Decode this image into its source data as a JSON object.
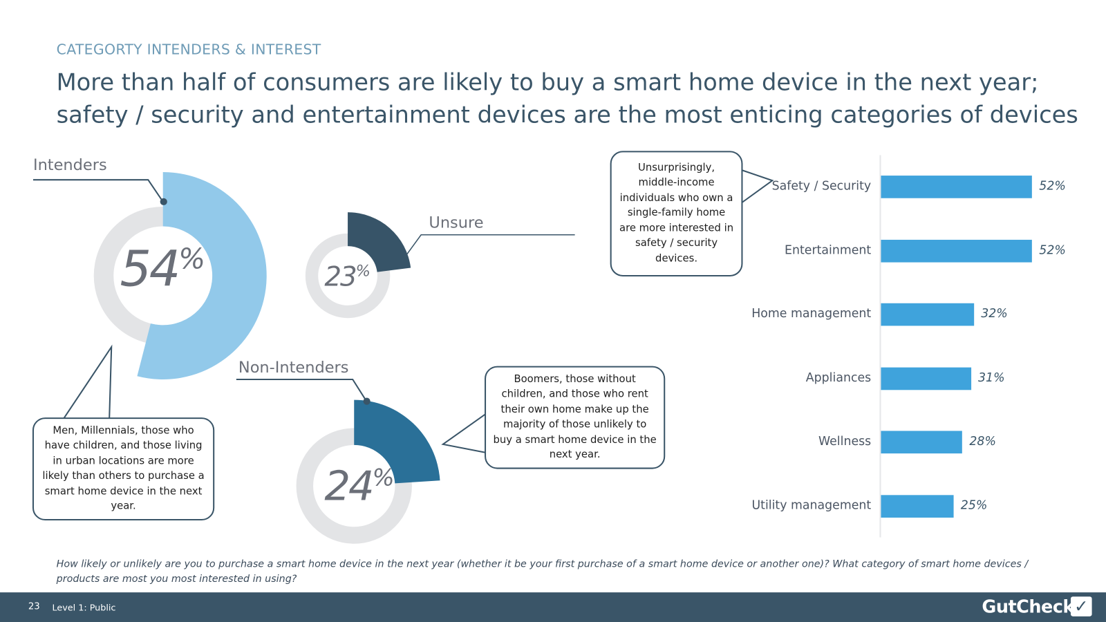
{
  "header": {
    "kicker": "CATEGORTY INTENDERS & INTEREST",
    "title_line1": "More than half of consumers are likely to buy a smart home device in the next year;",
    "title_line2": "safety / security and entertainment devices are the most enticing categories of devices"
  },
  "chart_data": [
    {
      "type": "pie",
      "subtype": "donut",
      "name": "Intenders",
      "value": 54,
      "unit": "%",
      "color": "#92c9ea",
      "track_color": "#e3e4e6"
    },
    {
      "type": "pie",
      "subtype": "donut",
      "name": "Unsure",
      "value": 23,
      "unit": "%",
      "color": "#375468",
      "track_color": "#e3e4e6"
    },
    {
      "type": "pie",
      "subtype": "donut",
      "name": "Non-Intenders",
      "value": 24,
      "unit": "%",
      "color": "#2a7098",
      "track_color": "#e3e4e6"
    },
    {
      "type": "bar",
      "orientation": "horizontal",
      "categories": [
        "Safety / Security",
        "Entertainment",
        "Home management",
        "Appliances",
        "Wellness",
        "Utility management"
      ],
      "values": [
        52,
        52,
        32,
        31,
        28,
        25
      ],
      "labels": [
        "52%",
        "52%",
        "32%",
        "31%",
        "28%",
        "25%"
      ],
      "xlim": [
        0,
        100
      ],
      "color": "#3fa3dc",
      "grid": false
    }
  ],
  "donuts": {
    "intenders_label": "Intenders",
    "intenders_value": "54",
    "unsure_label": "Unsure",
    "unsure_value": "23",
    "non_label": "Non-Intenders",
    "non_value": "24",
    "pct_sign": "%"
  },
  "callouts": {
    "intenders": "Men, Millennials, those who have children, and those living in urban locations are more likely than others to purchase a smart home device in the next year.",
    "non_intenders": "Boomers, those without children, and those who rent their own home make up the majority of those unlikely to buy a smart home device in the next year.",
    "security": "Unsurprisingly, middle-income individuals who own a single-family home are more interested in safety / security devices."
  },
  "question": "How likely or unlikely are you to purchase a smart home device in the next year (whether it be your first purchase of a smart home device or another one)? What category of smart home devices / products are most you most interested in using?",
  "footer": {
    "page": "23",
    "level": "Level 1: Public",
    "logo": "GutCheck",
    "logo_icon": "check-bubble-icon"
  }
}
